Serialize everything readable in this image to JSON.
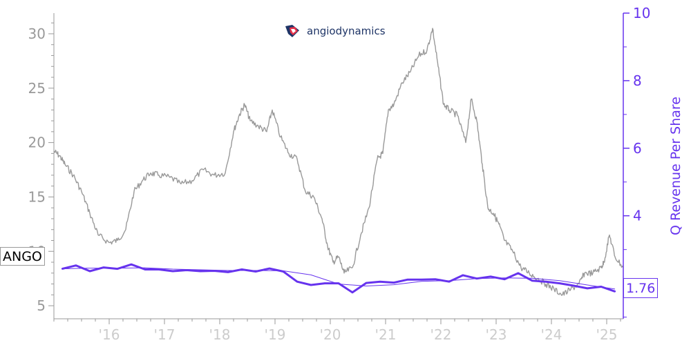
{
  "logo": {
    "text": "angiodynamics",
    "icon": "angiodynamics-logo-icon"
  },
  "ticker": "ANGO",
  "last_value_label": "1.76",
  "colors": {
    "price": "#999999",
    "revenue": "#6633ee",
    "axis_left": "#999999",
    "axis_right": "#6633ee"
  },
  "chart_data": {
    "type": "line",
    "x_ticks": [
      "'16",
      "'17",
      "'18",
      "'19",
      "'20",
      "'21",
      "'22",
      "'23",
      "'24",
      "'25"
    ],
    "left_axis": {
      "label": "",
      "ticks": [
        5,
        10,
        15,
        20,
        25,
        30
      ],
      "range": [
        3.8,
        31.9
      ]
    },
    "right_axis": {
      "label": "Q Revenue Per Share",
      "ticks": [
        4,
        6,
        8,
        10
      ],
      "range": [
        0.95,
        10
      ]
    },
    "series": [
      {
        "axis": "left",
        "style": "thin-gray-line",
        "x": [
          2015.0,
          2015.1,
          2015.2,
          2015.35,
          2015.5,
          2015.65,
          2015.8,
          2016.0,
          2016.15,
          2016.3,
          2016.45,
          2016.6,
          2016.75,
          2016.9,
          2017.1,
          2017.3,
          2017.5,
          2017.7,
          2017.9,
          2018.1,
          2018.25,
          2018.35,
          2018.45,
          2018.55,
          2018.7,
          2018.85,
          2018.95,
          2019.1,
          2019.25,
          2019.4,
          2019.55,
          2019.7,
          2019.85,
          2019.95,
          2020.05,
          2020.15,
          2020.25,
          2020.4,
          2020.55,
          2020.7,
          2020.85,
          2020.95,
          2021.05,
          2021.15,
          2021.3,
          2021.45,
          2021.6,
          2021.75,
          2021.85,
          2021.95,
          2022.05,
          2022.15,
          2022.3,
          2022.45,
          2022.55,
          2022.65,
          2022.75,
          2022.85,
          2022.95,
          2023.05,
          2023.15,
          2023.3,
          2023.45,
          2023.6,
          2023.75,
          2023.9,
          2024.05,
          2024.2,
          2024.35,
          2024.5,
          2024.6,
          2024.75,
          2024.9,
          2024.95,
          2025.05,
          2025.15,
          2025.3
        ],
        "values": [
          19.2,
          18.8,
          18.0,
          17.0,
          15.5,
          13.5,
          11.5,
          10.8,
          11.0,
          12.0,
          15.5,
          16.5,
          17.2,
          17.0,
          16.8,
          16.2,
          16.5,
          17.5,
          17.0,
          17.2,
          21.0,
          22.5,
          23.5,
          22.0,
          21.5,
          21.0,
          23.0,
          20.5,
          19.0,
          18.5,
          15.5,
          15.0,
          13.0,
          10.5,
          9.0,
          9.5,
          8.0,
          8.5,
          11.5,
          14.0,
          18.5,
          19.0,
          23.0,
          23.5,
          25.5,
          26.5,
          28.0,
          28.5,
          30.5,
          27.0,
          23.5,
          23.0,
          22.5,
          20.0,
          24.0,
          22.0,
          18.0,
          14.0,
          13.5,
          12.5,
          11.0,
          10.0,
          8.5,
          8.0,
          7.5,
          7.0,
          6.5,
          6.0,
          6.5,
          7.0,
          8.0,
          8.0,
          8.5,
          9.0,
          11.5,
          9.5,
          8.5
        ]
      },
      {
        "axis": "right",
        "style": "bold-purple-line",
        "x": [
          2015.15,
          2015.4,
          2015.65,
          2015.9,
          2016.15,
          2016.4,
          2016.65,
          2016.9,
          2017.15,
          2017.4,
          2017.65,
          2017.9,
          2018.15,
          2018.4,
          2018.65,
          2018.9,
          2019.15,
          2019.4,
          2019.65,
          2019.9,
          2020.15,
          2020.4,
          2020.65,
          2020.9,
          2021.15,
          2021.4,
          2021.65,
          2021.9,
          2022.15,
          2022.4,
          2022.65,
          2022.9,
          2023.15,
          2023.4,
          2023.65,
          2023.9,
          2024.15,
          2024.4,
          2024.65,
          2024.9,
          2025.15
        ],
        "values": [
          2.43,
          2.53,
          2.36,
          2.47,
          2.43,
          2.56,
          2.41,
          2.41,
          2.36,
          2.39,
          2.36,
          2.37,
          2.33,
          2.41,
          2.35,
          2.44,
          2.35,
          2.05,
          1.95,
          2.0,
          2.0,
          1.73,
          2.01,
          2.05,
          2.02,
          2.11,
          2.11,
          2.12,
          2.05,
          2.24,
          2.14,
          2.2,
          2.12,
          2.3,
          2.08,
          2.05,
          2.0,
          1.93,
          1.85,
          1.9,
          1.76
        ]
      },
      {
        "axis": "right",
        "style": "thin-purple-trend",
        "x": [
          2015.15,
          2015.65,
          2016.15,
          2016.65,
          2017.15,
          2017.65,
          2018.15,
          2018.65,
          2019.15,
          2019.65,
          2020.15,
          2020.65,
          2021.15,
          2021.65,
          2022.15,
          2022.65,
          2023.15,
          2023.65,
          2024.15,
          2024.65,
          2025.15
        ],
        "values": [
          2.43,
          2.45,
          2.45,
          2.46,
          2.42,
          2.4,
          2.38,
          2.38,
          2.37,
          2.25,
          1.98,
          1.92,
          1.96,
          2.06,
          2.08,
          2.14,
          2.16,
          2.15,
          2.08,
          1.95,
          1.83
        ]
      }
    ]
  }
}
